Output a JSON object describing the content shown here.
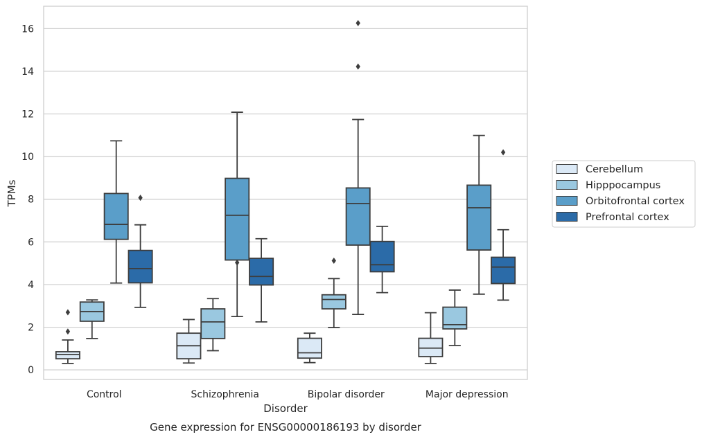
{
  "caption": "Gene expression for ENSG00000186193 by disorder",
  "chart_data": {
    "type": "box",
    "xlabel": "Disorder",
    "ylabel": "TPMs",
    "ylim": [
      -0.45,
      17.05
    ],
    "yticks": [
      0,
      2,
      4,
      6,
      8,
      10,
      12,
      14,
      16
    ],
    "grid": "horizontal",
    "legend_position": "right",
    "categories": [
      "Control",
      "Schizophrenia",
      "Bipolar disorder",
      "Major depression"
    ],
    "series": [
      {
        "name": "Cerebellum",
        "color": "#dbe9f6",
        "boxes": [
          {
            "whisker_low": 0.3,
            "q1": 0.52,
            "median": 0.72,
            "q3": 0.85,
            "whisker_high": 1.4,
            "outliers": [
              1.8,
              2.7
            ]
          },
          {
            "whisker_low": 0.32,
            "q1": 0.52,
            "median": 1.13,
            "q3": 1.72,
            "whisker_high": 2.36,
            "outliers": []
          },
          {
            "whisker_low": 0.34,
            "q1": 0.55,
            "median": 0.8,
            "q3": 1.48,
            "whisker_high": 1.72,
            "outliers": []
          },
          {
            "whisker_low": 0.3,
            "q1": 0.62,
            "median": 1.02,
            "q3": 1.48,
            "whisker_high": 2.68,
            "outliers": []
          }
        ]
      },
      {
        "name": "Hipppocampus",
        "color": "#9ac8e0",
        "boxes": [
          {
            "whisker_low": 1.47,
            "q1": 2.28,
            "median": 2.73,
            "q3": 3.18,
            "whisker_high": 3.28,
            "outliers": []
          },
          {
            "whisker_low": 0.9,
            "q1": 1.47,
            "median": 2.25,
            "q3": 2.86,
            "whisker_high": 3.34,
            "outliers": []
          },
          {
            "whisker_low": 1.98,
            "q1": 2.86,
            "median": 3.3,
            "q3": 3.52,
            "whisker_high": 4.28,
            "outliers": [
              5.12
            ]
          },
          {
            "whisker_low": 1.14,
            "q1": 1.92,
            "median": 2.12,
            "q3": 2.94,
            "whisker_high": 3.74,
            "outliers": []
          }
        ]
      },
      {
        "name": "Orbitofrontal cortex",
        "color": "#5a9ec9",
        "boxes": [
          {
            "whisker_low": 4.07,
            "q1": 6.12,
            "median": 6.82,
            "q3": 8.27,
            "whisker_high": 10.74,
            "outliers": []
          },
          {
            "whisker_low": 2.5,
            "q1": 5.15,
            "median": 7.25,
            "q3": 8.98,
            "whisker_high": 12.08,
            "outliers": [
              5.03
            ]
          },
          {
            "whisker_low": 2.6,
            "q1": 5.85,
            "median": 7.8,
            "q3": 8.53,
            "whisker_high": 11.74,
            "outliers": [
              16.26,
              14.22
            ]
          },
          {
            "whisker_low": 3.55,
            "q1": 5.62,
            "median": 7.6,
            "q3": 8.66,
            "whisker_high": 10.99,
            "outliers": []
          }
        ]
      },
      {
        "name": "Prefrontal cortex",
        "color": "#2b6ba8",
        "boxes": [
          {
            "whisker_low": 2.93,
            "q1": 4.08,
            "median": 4.75,
            "q3": 5.6,
            "whisker_high": 6.8,
            "outliers": [
              8.07
            ]
          },
          {
            "whisker_low": 2.25,
            "q1": 3.98,
            "median": 4.38,
            "q3": 5.23,
            "whisker_high": 6.15,
            "outliers": []
          },
          {
            "whisker_low": 3.62,
            "q1": 4.6,
            "median": 4.93,
            "q3": 6.02,
            "whisker_high": 6.73,
            "outliers": []
          },
          {
            "whisker_low": 3.27,
            "q1": 4.05,
            "median": 4.82,
            "q3": 5.28,
            "whisker_high": 6.57,
            "outliers": [
              10.2
            ]
          }
        ]
      }
    ]
  }
}
